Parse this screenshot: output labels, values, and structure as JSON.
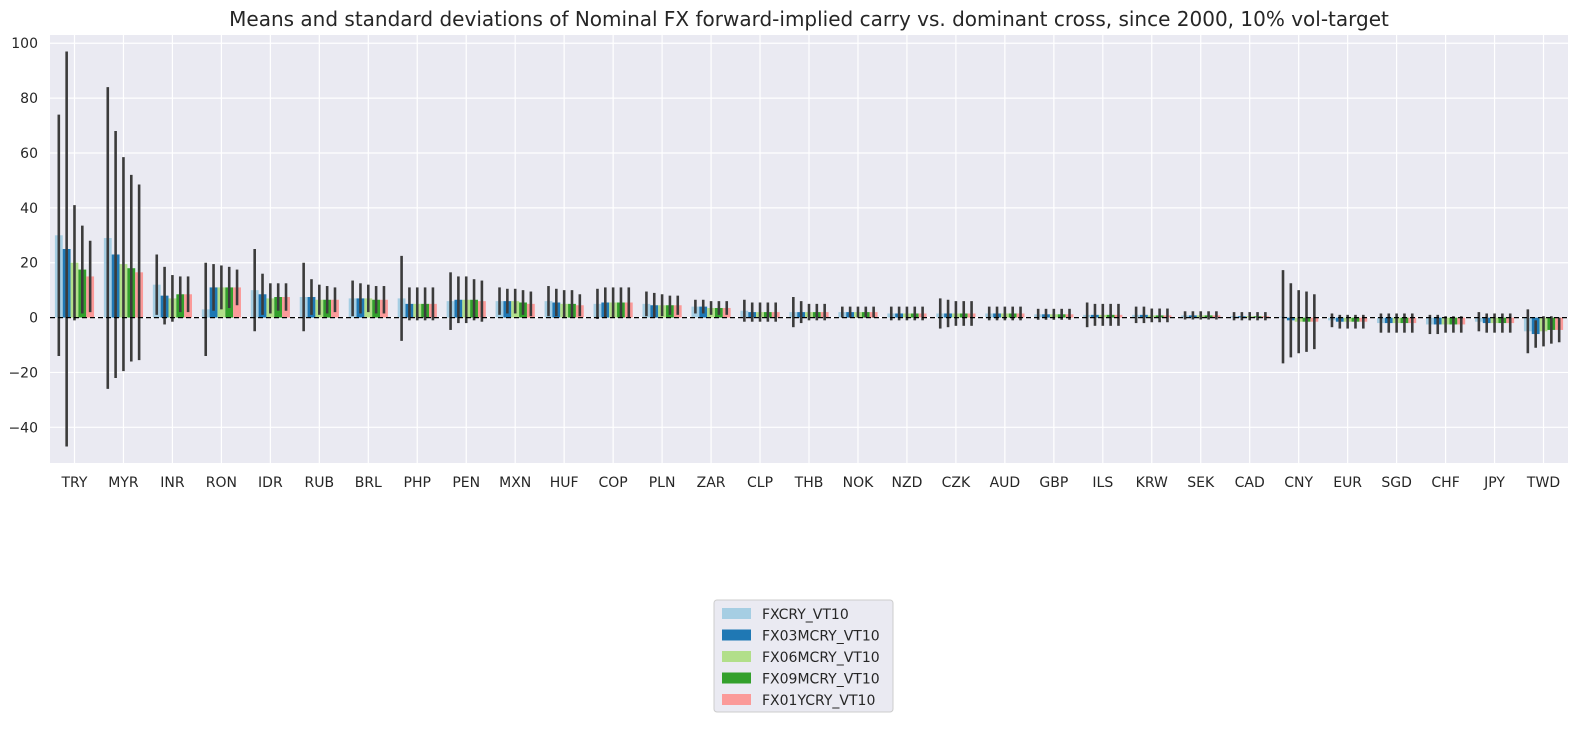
{
  "chart_data": {
    "type": "bar",
    "title": "Means and standard deviations of Nominal FX forward-implied carry vs. dominant cross, since 2000, 10% vol-target",
    "xlabel": "",
    "ylabel": "",
    "ylim": [
      -53,
      103
    ],
    "yticks": [
      -40,
      -20,
      0,
      20,
      40,
      60,
      80,
      100
    ],
    "grid": true,
    "legend_position": "bottom-center",
    "zero_line": "dashed",
    "categories": [
      "TRY",
      "MYR",
      "INR",
      "RON",
      "IDR",
      "RUB",
      "BRL",
      "PHP",
      "PEN",
      "MXN",
      "HUF",
      "COP",
      "PLN",
      "ZAR",
      "CLP",
      "THB",
      "NOK",
      "NZD",
      "CZK",
      "AUD",
      "GBP",
      "ILS",
      "KRW",
      "SEK",
      "CAD",
      "CNY",
      "EUR",
      "SGD",
      "CHF",
      "JPY",
      "TWD"
    ],
    "series": [
      {
        "name": "FXCRY_VT10",
        "color": "#a6cee3",
        "values": [
          30,
          29,
          12,
          3,
          10,
          7.5,
          7,
          7,
          6,
          6,
          6,
          5,
          5,
          4,
          2.5,
          2,
          2,
          1.5,
          1.5,
          1.5,
          1.2,
          1,
          1,
          0.8,
          0.5,
          0.3,
          -1,
          -2,
          -2.5,
          -1.5,
          -5
        ],
        "sd": [
          44,
          55,
          11,
          17,
          15,
          12.5,
          6.5,
          15.5,
          10.5,
          5,
          5.5,
          5.5,
          4.5,
          2.5,
          4,
          5.5,
          2,
          2.5,
          5.5,
          2.5,
          2,
          4.5,
          3,
          1.5,
          1.5,
          17,
          2.5,
          3.5,
          3.5,
          3.5,
          8
        ]
      },
      {
        "name": "FX03MCRY_VT10",
        "color": "#1f78b4",
        "values": [
          25,
          23,
          8,
          11,
          8.5,
          7.5,
          7,
          5,
          6.5,
          6,
          5.5,
          5.5,
          4.5,
          4,
          2,
          2,
          2,
          1.5,
          1.5,
          1.5,
          1.2,
          1,
          1,
          0.8,
          0.5,
          -1,
          -1.5,
          -2,
          -2.5,
          -2,
          -6
        ],
        "sd": [
          72,
          45,
          10.5,
          8.5,
          7.5,
          6.5,
          5.5,
          6,
          8.5,
          4.5,
          5,
          5.5,
          4.5,
          2.5,
          3.5,
          4,
          2,
          2.5,
          5,
          2.5,
          2,
          4,
          3,
          1.5,
          1.5,
          13.5,
          2.5,
          3.5,
          3.5,
          3.5,
          5
        ]
      },
      {
        "name": "FX06MCRY_VT10",
        "color": "#b2df8a",
        "values": [
          20,
          19.5,
          7,
          11,
          7,
          6.5,
          7,
          5,
          6.5,
          6,
          5,
          5.5,
          4.5,
          3.5,
          2,
          2,
          2,
          1.5,
          1.5,
          1.5,
          1.2,
          1,
          0.8,
          0.8,
          0.5,
          -1.5,
          -1.5,
          -2,
          -2.5,
          -2,
          -5
        ],
        "sd": [
          21,
          39,
          8.5,
          8,
          5.5,
          5.5,
          5,
          6,
          8.5,
          4.5,
          5,
          5.5,
          4,
          2.5,
          3.5,
          3,
          2,
          2.5,
          4.5,
          2.5,
          2,
          4,
          2.5,
          1.5,
          1.5,
          11.5,
          2.5,
          3.5,
          3,
          3.5,
          5.5
        ]
      },
      {
        "name": "FX09MCRY_VT10",
        "color": "#33a02c",
        "values": [
          17.5,
          18,
          8.5,
          11,
          7.5,
          6.5,
          6.5,
          5,
          6.5,
          5.5,
          5,
          5.5,
          4.5,
          3.5,
          2,
          2,
          2,
          1.5,
          1.5,
          1.5,
          1.2,
          1,
          0.8,
          0.8,
          0.5,
          -1.5,
          -1.5,
          -2,
          -2.5,
          -2,
          -4.5
        ],
        "sd": [
          16,
          34,
          6.5,
          7.5,
          5,
          5,
          5,
          6,
          7.5,
          4.5,
          5,
          5.5,
          3.5,
          2.5,
          3.5,
          3,
          2,
          2.5,
          4.5,
          2.5,
          2,
          4,
          2.5,
          1.5,
          1.5,
          11,
          2.5,
          3.5,
          3,
          3.5,
          5
        ]
      },
      {
        "name": "FX01YCRY_VT10",
        "color": "#fb9a99",
        "values": [
          15,
          16.5,
          8.5,
          11,
          7.5,
          6.5,
          6.5,
          5,
          6,
          5,
          4.5,
          5.5,
          4.5,
          3.5,
          2,
          2,
          2,
          1.5,
          1.5,
          1.5,
          1.2,
          1,
          0.8,
          0.8,
          0.5,
          -1.5,
          -1.5,
          -2,
          -2.5,
          -2,
          -4.5
        ],
        "sd": [
          13,
          32,
          6.5,
          6.5,
          5,
          4.5,
          5,
          6,
          7.5,
          4.5,
          4,
          5.5,
          3.5,
          2.5,
          3.5,
          3,
          2,
          2.5,
          4.5,
          2.5,
          2,
          4,
          2.5,
          1.5,
          1.5,
          10,
          2.5,
          3.5,
          3,
          3.5,
          4.5
        ]
      }
    ]
  }
}
